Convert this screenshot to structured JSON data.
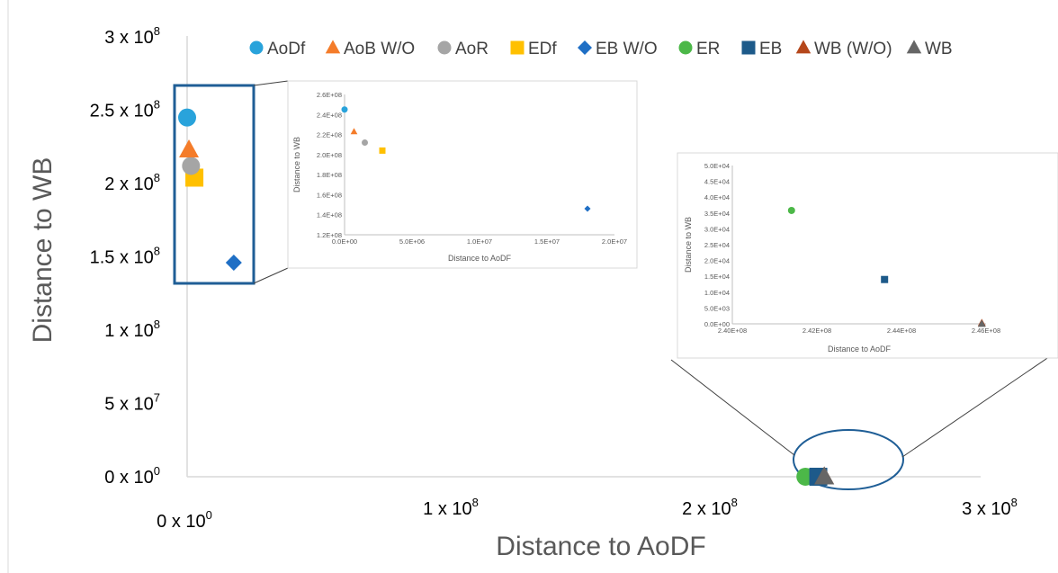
{
  "chart_data": {
    "type": "scatter",
    "xlabel": "Distance to AoDF",
    "ylabel": "Distance to WB",
    "xlim": [
      0,
      300000000
    ],
    "ylim": [
      0,
      300000000
    ],
    "grid": false,
    "legend_position": "top",
    "x_ticks": [
      {
        "value": 0,
        "mantissa": "0 x 10",
        "exp": "0"
      },
      {
        "value": 100000000,
        "mantissa": "1 x 10",
        "exp": "8"
      },
      {
        "value": 200000000,
        "mantissa": "2 x 10",
        "exp": "8"
      },
      {
        "value": 300000000,
        "mantissa": "3 x 10",
        "exp": "8"
      }
    ],
    "y_ticks": [
      {
        "value": 0,
        "mantissa": "0 x 10",
        "exp": "0"
      },
      {
        "value": 50000000,
        "mantissa": "5 x 10",
        "exp": "7"
      },
      {
        "value": 100000000,
        "mantissa": "1 x 10",
        "exp": "8"
      },
      {
        "value": 150000000,
        "mantissa": "1.5 x 10",
        "exp": "8"
      },
      {
        "value": 200000000,
        "mantissa": "2 x 10",
        "exp": "8"
      },
      {
        "value": 250000000,
        "mantissa": "2.5 x 10",
        "exp": "8"
      },
      {
        "value": 300000000,
        "mantissa": "3 x 10",
        "exp": "8"
      }
    ],
    "series": [
      {
        "name": "AoDf",
        "marker": "circle",
        "color": "#29a3db",
        "x": [
          0
        ],
        "y": [
          245000000
        ]
      },
      {
        "name": "AoB W/O",
        "marker": "triangle",
        "color": "#f47c2a",
        "x": [
          700000
        ],
        "y": [
          223000000
        ]
      },
      {
        "name": "AoR",
        "marker": "circle",
        "color": "#a5a5a5",
        "x": [
          1500000
        ],
        "y": [
          212000000
        ]
      },
      {
        "name": "EDf",
        "marker": "square",
        "color": "#ffc000",
        "x": [
          2800000
        ],
        "y": [
          204000000
        ]
      },
      {
        "name": "EB W/O",
        "marker": "diamond",
        "color": "#1f6fc5",
        "x": [
          18000000
        ],
        "y": [
          146000000
        ]
      },
      {
        "name": "ER",
        "marker": "circle",
        "color": "#4cb848",
        "x": [
          241400000
        ],
        "y": [
          35800
        ]
      },
      {
        "name": "EB",
        "marker": "square",
        "color": "#1d5a8a",
        "x": [
          243600000
        ],
        "y": [
          14000
        ]
      },
      {
        "name": "WB (W/O)",
        "marker": "triangle",
        "color": "#b5471b",
        "x": [
          245900000
        ],
        "y": [
          300
        ]
      },
      {
        "name": "WB",
        "marker": "triangle",
        "color": "#666666",
        "x": [
          245900000
        ],
        "y": [
          0
        ]
      }
    ],
    "insets": [
      {
        "id": "inset-top",
        "xlabel": "Distance to AoDF",
        "ylabel": "Distance to WB",
        "xlim": [
          0,
          20000000
        ],
        "ylim": [
          120000000,
          260000000
        ],
        "x_ticks": [
          "0.0E+00",
          "5.0E+06",
          "1.0E+07",
          "1.5E+07",
          "2.0E+07"
        ],
        "x_tick_values": [
          0,
          5000000,
          10000000,
          15000000,
          20000000
        ],
        "y_ticks": [
          "1.2E+08",
          "1.4E+08",
          "1.6E+08",
          "1.8E+08",
          "2.0E+08",
          "2.2E+08",
          "2.4E+08",
          "2.6E+08"
        ],
        "y_tick_values": [
          120000000,
          140000000,
          160000000,
          180000000,
          200000000,
          220000000,
          240000000,
          260000000
        ],
        "series_names": [
          "AoDf",
          "AoB W/O",
          "AoR",
          "EDf",
          "EB W/O"
        ]
      },
      {
        "id": "inset-bottom",
        "xlabel": "Distance to AoDF",
        "ylabel": "Distance to WB",
        "xlim": [
          240000000,
          246000000
        ],
        "ylim": [
          0,
          50000
        ],
        "x_ticks": [
          "2.40E+08",
          "2.42E+08",
          "2.44E+08",
          "2.46E+08"
        ],
        "x_tick_values": [
          240000000,
          242000000,
          244000000,
          246000000
        ],
        "y_ticks": [
          "0.0E+00",
          "5.0E+03",
          "1.0E+04",
          "1.5E+04",
          "2.0E+04",
          "2.5E+04",
          "3.0E+04",
          "3.5E+04",
          "4.0E+04",
          "4.5E+04",
          "5.0E+04"
        ],
        "y_tick_values": [
          0,
          5000,
          10000,
          15000,
          20000,
          25000,
          30000,
          35000,
          40000,
          45000,
          50000
        ],
        "series_names": [
          "ER",
          "EB",
          "WB (W/O)",
          "WB"
        ]
      }
    ]
  }
}
